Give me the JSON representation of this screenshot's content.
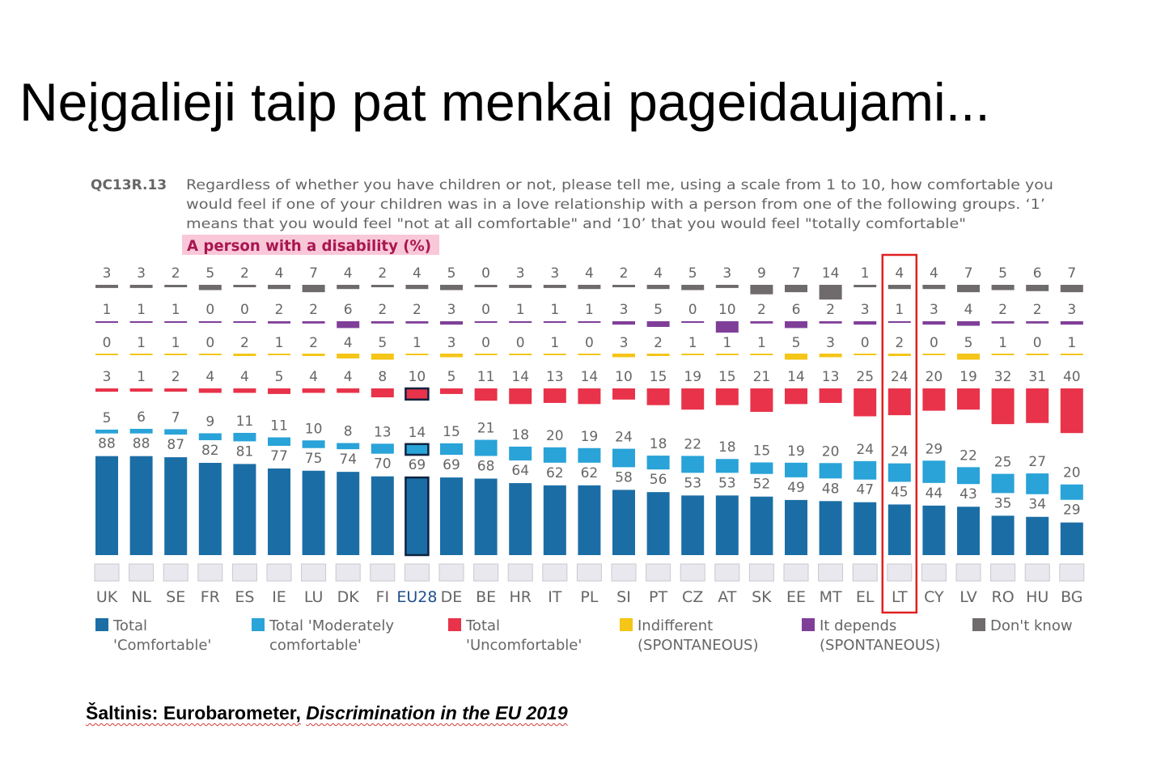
{
  "slide": {
    "title": "Neįgalieji taip pat menkai pageidaujami...",
    "source_prefix": "Šaltinis: Eurobarometer,",
    "source_title": "Discrimination in the EU 2019"
  },
  "chart_data": {
    "type": "bar",
    "question_code": "QC13R.13",
    "question_lines": [
      "Regardless of whether you have children or not, please tell me, using a scale from 1 to 10, how comfortable you",
      "would feel if one of your children was in a love relationship with a person from one of the following groups. ‘1’",
      "means that you would feel \"not at all comfortable\" and ‘10’ that you would feel \"totally comfortable\""
    ],
    "subtitle": "A person with a disability  (%)",
    "categories": [
      "UK",
      "NL",
      "SE",
      "FR",
      "ES",
      "IE",
      "LU",
      "DK",
      "FI",
      "EU28",
      "DE",
      "BE",
      "HR",
      "IT",
      "PL",
      "SI",
      "PT",
      "CZ",
      "AT",
      "SK",
      "EE",
      "MT",
      "EL",
      "LT",
      "CY",
      "LV",
      "RO",
      "HU",
      "BG"
    ],
    "highlighted_categories": [
      "EU28"
    ],
    "boxed_category": "LT",
    "series": [
      {
        "name": "Total 'Comfortable'",
        "values": [
          88,
          88,
          87,
          82,
          81,
          77,
          75,
          74,
          70,
          69,
          69,
          68,
          64,
          62,
          62,
          58,
          56,
          53,
          53,
          52,
          49,
          48,
          47,
          45,
          44,
          43,
          35,
          34,
          29
        ]
      },
      {
        "name": "Total 'Moderately comfortable'",
        "values": [
          5,
          6,
          7,
          9,
          11,
          11,
          10,
          8,
          13,
          14,
          15,
          21,
          18,
          20,
          19,
          24,
          18,
          22,
          18,
          15,
          19,
          20,
          24,
          24,
          29,
          22,
          25,
          27,
          20
        ]
      },
      {
        "name": "Total 'Uncomfortable'",
        "values": [
          3,
          1,
          2,
          4,
          4,
          5,
          4,
          4,
          8,
          10,
          5,
          11,
          14,
          13,
          14,
          10,
          15,
          19,
          15,
          21,
          14,
          13,
          25,
          24,
          20,
          19,
          32,
          31,
          40
        ]
      },
      {
        "name": "Indifferent (SPONTANEOUS)",
        "values": [
          0,
          1,
          1,
          0,
          2,
          1,
          2,
          4,
          5,
          1,
          3,
          0,
          0,
          1,
          0,
          3,
          2,
          1,
          1,
          1,
          5,
          3,
          0,
          2,
          0,
          5,
          1,
          0,
          1
        ]
      },
      {
        "name": "It depends (SPONTANEOUS)",
        "values": [
          1,
          1,
          1,
          0,
          0,
          2,
          2,
          6,
          2,
          2,
          3,
          0,
          1,
          1,
          1,
          3,
          5,
          0,
          10,
          2,
          6,
          2,
          3,
          1,
          3,
          4,
          2,
          2,
          3
        ]
      },
      {
        "name": "Don't know",
        "values": [
          3,
          3,
          2,
          5,
          2,
          4,
          7,
          4,
          2,
          4,
          5,
          0,
          3,
          3,
          4,
          2,
          4,
          5,
          3,
          9,
          7,
          14,
          1,
          4,
          4,
          7,
          5,
          6,
          7
        ]
      }
    ],
    "legend": [
      {
        "line1": "Total",
        "line2": "'Comfortable'"
      },
      {
        "line1": "Total 'Moderately",
        "line2": "comfortable'"
      },
      {
        "line1": "Total",
        "line2": "'Uncomfortable'"
      },
      {
        "line1": "Indifferent",
        "line2": "(SPONTANEOUS)"
      },
      {
        "line1": "It depends",
        "line2": "(SPONTANEOUS)"
      },
      {
        "line1": "Don't know",
        "line2": ""
      }
    ],
    "colors": {
      "comfortable": "#1b6ea5",
      "moderately": "#29a3d8",
      "uncomfortable": "#e8334a",
      "indifferent": "#f5c518",
      "it_depends": "#7f3f98",
      "dont_know": "#6f6a6b",
      "highlight_box": "#e02020",
      "subtitle_bg": "#f9c8d8",
      "subtitle_text": "#a8174f",
      "label_text": "#666666"
    },
    "legend_position": "bottom",
    "grid": false
  }
}
